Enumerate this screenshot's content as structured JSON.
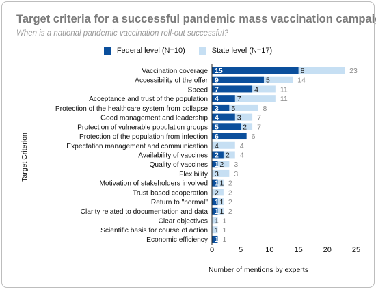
{
  "chart_data": {
    "type": "bar",
    "orientation": "horizontal",
    "stacking": "overlapping",
    "title": "Target criteria for a successful pandemic mass vaccination campaign",
    "subtitle": "When is a national pandemic vaccination roll-out successful?",
    "xlabel": "Number of mentions by experts",
    "ylabel": "Target Criterion",
    "xlim": [
      0,
      25
    ],
    "xticks": [
      0,
      5,
      10,
      15,
      20,
      25
    ],
    "legend_position": "top-center",
    "grid": false,
    "categories": [
      "Vaccination coverage",
      "Accessibility of the offer",
      "Speed",
      "Acceptance and trust of the population",
      "Protection of the healthcare system from collapse",
      "Good management and leadership",
      "Protection of vulnerable population groups",
      "Protection of the population from infection",
      "Expectation management and communication",
      "Availability of vaccines",
      "Quality of vaccines",
      "Flexibility",
      "Motivation of stakeholders involved",
      "Trust-based cooperation",
      "Return to \"normal\"",
      "Clarity related to documentation and data",
      "Clear objectives",
      "Scientific basis for course of action",
      "Economic efficiency"
    ],
    "series": [
      {
        "name": "Federal level (N=10)",
        "color": "#0b4f9c",
        "values": [
          15,
          9,
          7,
          4,
          3,
          4,
          5,
          6,
          0,
          2,
          1,
          0,
          1,
          0,
          1,
          1,
          0,
          0,
          1
        ]
      },
      {
        "name": "State level (N=17)",
        "color": "#c6dff3",
        "values": [
          8,
          5,
          4,
          7,
          5,
          3,
          2,
          0,
          4,
          2,
          2,
          3,
          1,
          2,
          1,
          1,
          1,
          1,
          0
        ]
      }
    ],
    "totals": [
      23,
      14,
      11,
      11,
      8,
      7,
      7,
      6,
      4,
      4,
      3,
      3,
      2,
      2,
      2,
      2,
      1,
      1,
      1
    ]
  }
}
